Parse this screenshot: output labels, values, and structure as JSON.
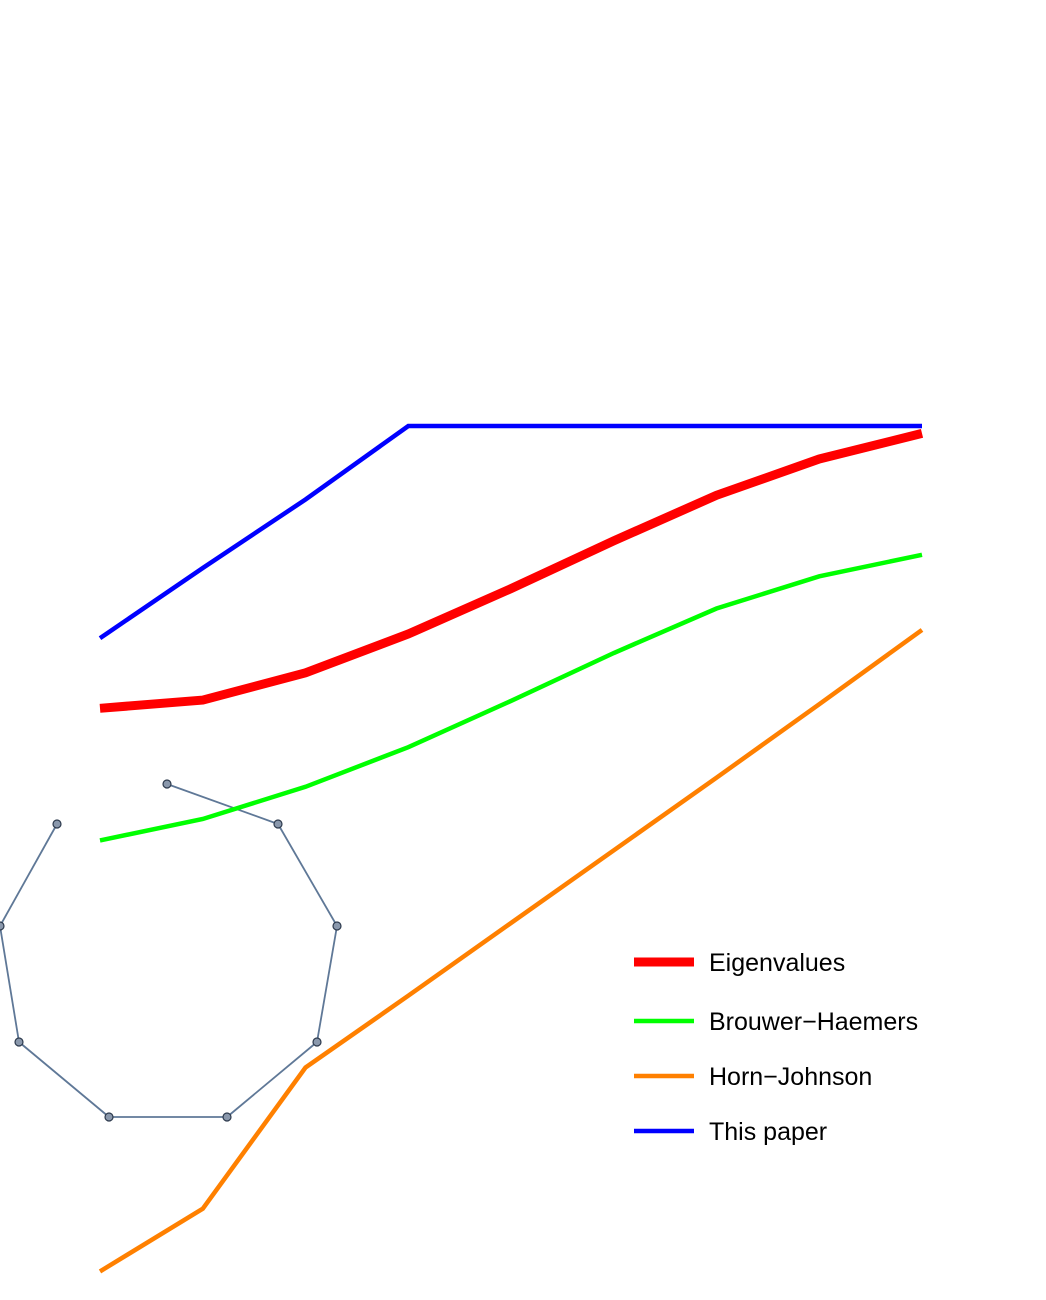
{
  "chart_data": {
    "type": "line",
    "x": [
      1,
      2,
      3,
      4,
      5,
      6,
      7,
      8,
      9
    ],
    "series": [
      {
        "name": "Eigenvalues",
        "color": "#ff0000",
        "values": [
          0.39,
          0.4,
          0.433,
          0.48,
          0.535,
          0.593,
          0.648,
          0.692,
          0.723
        ]
      },
      {
        "name": "Brouwer−Haemers",
        "color": "#00ff00",
        "values": [
          0.23,
          0.256,
          0.295,
          0.343,
          0.399,
          0.457,
          0.511,
          0.55,
          0.576
        ]
      },
      {
        "name": "Horn−Johnson",
        "color": "#ff8000",
        "values": [
          -0.292,
          -0.216,
          -0.045,
          0.042,
          0.13,
          0.218,
          0.306,
          0.395,
          0.485
        ]
      },
      {
        "name": "This paper",
        "color": "#0000ff",
        "values": [
          0.475,
          0.56,
          0.643,
          0.732,
          0.732,
          0.732,
          0.732,
          0.732,
          0.732
        ]
      }
    ],
    "xlim": [
      1,
      9
    ],
    "ylim": [
      -0.3,
      0.8
    ],
    "grid": false,
    "axes": false,
    "legend_position": "bottom-right"
  },
  "inset_graph": {
    "description_type": "network",
    "node_color": "#8a98ac",
    "edge_color": "#5f7897",
    "node_count": 9,
    "edges": [
      [
        0,
        1
      ],
      [
        1,
        2
      ],
      [
        2,
        3
      ],
      [
        3,
        4
      ],
      [
        4,
        5
      ],
      [
        5,
        6
      ],
      [
        6,
        7
      ],
      [
        7,
        8
      ]
    ]
  }
}
